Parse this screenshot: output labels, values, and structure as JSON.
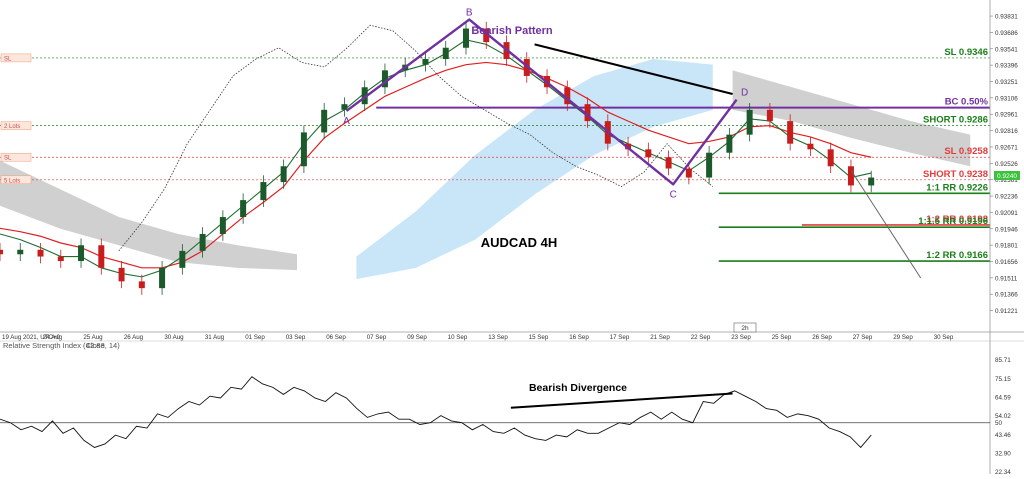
{
  "chart_data": [
    {
      "type": "line",
      "title": "AUDCAD 4H",
      "yaxis_ticks": [
        "0.93831",
        "0.93686",
        "0.93541",
        "0.93396",
        "0.93251",
        "0.93106",
        "0.92961",
        "0.92816",
        "0.92671",
        "0.92526",
        "0.92381",
        "0.92236",
        "0.92091",
        "0.91946",
        "0.91801",
        "0.91656",
        "0.91511",
        "0.91366",
        "0.91221"
      ],
      "xaxis_ticks": [
        "19 Aug 2021, UTC+0",
        "24 Aug",
        "25 Aug",
        "26 Aug",
        "30 Aug",
        "31 Aug",
        "01 Sep",
        "03 Sep",
        "06 Sep",
        "07 Sep",
        "09 Sep",
        "10 Sep",
        "13 Sep",
        "15 Sep",
        "16 Sep",
        "17 Sep",
        "21 Sep",
        "22 Sep",
        "23 Sep",
        "25 Sep",
        "26 Sep",
        "27 Sep",
        "29 Sep",
        "30 Sep"
      ],
      "timeframe_box": "2h",
      "price_box": "0.9240",
      "ylim": [
        0.9112,
        0.9392
      ],
      "pattern": {
        "name": "Bearish Pattern",
        "points": [
          {
            "label": "A",
            "x": 17.5,
            "y": 0.9299
          },
          {
            "label": "B",
            "x": 23.7,
            "y": 0.938
          },
          {
            "label": "C",
            "x": 34.0,
            "y": 0.9234
          },
          {
            "label": "D",
            "x": 37.2,
            "y": 0.9309
          }
        ]
      },
      "levels": [
        {
          "label": "SL 0.9346",
          "value": 0.9346,
          "color": "#1a7f1a",
          "style": "dotted",
          "x_from": 0
        },
        {
          "label": "BC 0.50%",
          "value": 0.9302,
          "color": "#7030a0",
          "style": "solid",
          "x_from": 19
        },
        {
          "label": "SHORT 0.9286",
          "value": 0.9286,
          "color": "#1a7f1a",
          "style": "dotted",
          "x_from": 0
        },
        {
          "label": "SL 0.9258",
          "value": 0.9258,
          "color": "#e23b3b",
          "style": "dotted",
          "x_from": 0
        },
        {
          "label": "SHORT 0.9238",
          "value": 0.9238,
          "color": "#e23b3b",
          "style": "dotted",
          "x_from": 0
        },
        {
          "label": "1:1 RR 0.9226",
          "value": 0.9226,
          "color": "#1a7f1a",
          "style": "solid",
          "x_from": 36.3
        },
        {
          "label": "1:2 RR 0.9198",
          "value": 0.9198,
          "color": "#e23b3b",
          "style": "solid",
          "x_from": 40.5
        },
        {
          "label": "1:1.5 RR 0.9196",
          "value": 0.9196,
          "color": "#1a7f1a",
          "style": "solid",
          "x_from": 36.3
        },
        {
          "label": "1:2 RR 0.9166",
          "value": 0.9166,
          "color": "#1a7f1a",
          "style": "solid",
          "x_from": 36.3
        }
      ],
      "order_tags": [
        "SL",
        "2 Lots",
        "SL",
        "5 Lots"
      ],
      "trendline": [
        {
          "x": 27.0,
          "y": 0.9358
        },
        {
          "x": 37.0,
          "y": 0.9314
        }
      ],
      "projection": [
        {
          "x": 43.0,
          "y": 0.9246
        },
        {
          "x": 46.5,
          "y": 0.9151
        }
      ],
      "candles_close": [
        0.9172,
        0.9176,
        0.917,
        0.9166,
        0.918,
        0.916,
        0.9148,
        0.9142,
        0.916,
        0.9175,
        0.919,
        0.9205,
        0.922,
        0.9236,
        0.925,
        0.928,
        0.93,
        0.9305,
        0.932,
        0.9335,
        0.934,
        0.9345,
        0.9355,
        0.9372,
        0.936,
        0.9345,
        0.933,
        0.932,
        0.9305,
        0.929,
        0.927,
        0.9265,
        0.9258,
        0.9248,
        0.924,
        0.9262,
        0.9278,
        0.93,
        0.929,
        0.927,
        0.9265,
        0.925,
        0.9233,
        0.924
      ],
      "tenkan": [
        0.919,
        0.9185,
        0.9178,
        0.917,
        0.917,
        0.916,
        0.9155,
        0.9152,
        0.9158,
        0.917,
        0.9185,
        0.92,
        0.9215,
        0.923,
        0.9245,
        0.927,
        0.929,
        0.93,
        0.9315,
        0.9328,
        0.9335,
        0.934,
        0.935,
        0.9362,
        0.9358,
        0.9348,
        0.9335,
        0.9322,
        0.9308,
        0.9294,
        0.9278,
        0.927,
        0.9262,
        0.9254,
        0.9246,
        0.9258,
        0.9272,
        0.9292,
        0.929,
        0.9276,
        0.9268,
        0.9255,
        0.924,
        0.9244
      ],
      "kijun": [
        0.9195,
        0.9192,
        0.9188,
        0.9182,
        0.9178,
        0.917,
        0.9165,
        0.916,
        0.916,
        0.9165,
        0.9175,
        0.919,
        0.9205,
        0.9218,
        0.9232,
        0.9255,
        0.9275,
        0.9288,
        0.93,
        0.9312,
        0.932,
        0.9328,
        0.9335,
        0.934,
        0.9342,
        0.934,
        0.9335,
        0.9328,
        0.932,
        0.931,
        0.9298,
        0.929,
        0.9282,
        0.9276,
        0.927,
        0.9272,
        0.9276,
        0.9285,
        0.9286,
        0.928,
        0.9276,
        0.927,
        0.9262,
        0.9258
      ],
      "chikou": [
        0.9175,
        0.92,
        0.923,
        0.927,
        0.93,
        0.933,
        0.9345,
        0.9355,
        0.9342,
        0.9338,
        0.9355,
        0.9375,
        0.937,
        0.9352,
        0.933,
        0.9312,
        0.93,
        0.9288,
        0.9278,
        0.9262,
        0.925,
        0.9242,
        0.9232,
        0.9245,
        0.927,
        0.9248,
        0.9232
      ],
      "cloud_grey": [
        {
          "x": 0,
          "top": 0.9255,
          "bottom": 0.9215
        },
        {
          "x": 3,
          "top": 0.923,
          "bottom": 0.9195
        },
        {
          "x": 6,
          "top": 0.9205,
          "bottom": 0.918
        },
        {
          "x": 9,
          "top": 0.919,
          "bottom": 0.9165
        },
        {
          "x": 12,
          "top": 0.918,
          "bottom": 0.916
        },
        {
          "x": 15,
          "top": 0.9172,
          "bottom": 0.9158
        },
        {
          "x": 37,
          "top": 0.9335,
          "bottom": 0.93
        },
        {
          "x": 40,
          "top": 0.932,
          "bottom": 0.929
        },
        {
          "x": 43,
          "top": 0.9305,
          "bottom": 0.9275
        },
        {
          "x": 46,
          "top": 0.929,
          "bottom": 0.9262
        },
        {
          "x": 49,
          "top": 0.9278,
          "bottom": 0.925
        }
      ],
      "cloud_blue": [
        {
          "x": 18,
          "top": 0.917,
          "bottom": 0.915
        },
        {
          "x": 21,
          "top": 0.921,
          "bottom": 0.916
        },
        {
          "x": 24,
          "top": 0.926,
          "bottom": 0.9185
        },
        {
          "x": 27,
          "top": 0.93,
          "bottom": 0.9225
        },
        {
          "x": 30,
          "top": 0.933,
          "bottom": 0.926
        },
        {
          "x": 33,
          "top": 0.9345,
          "bottom": 0.9285
        },
        {
          "x": 36,
          "top": 0.934,
          "bottom": 0.93
        }
      ]
    },
    {
      "type": "line",
      "title": "Relative Strength Index (Close, 14)",
      "current_value": "42.83",
      "ylim": [
        21.0,
        90.0
      ],
      "yaxis_ticks": [
        "85.71",
        "75.15",
        "64.59",
        "54.02",
        "50",
        "43.46",
        "32.90",
        "22.34"
      ],
      "reference_level": 50,
      "annotation": "Bearish Divergence",
      "divergence_line": [
        {
          "x": 25.8,
          "y": 58.5
        },
        {
          "x": 37.0,
          "y": 66.5
        }
      ],
      "series": [
        {
          "values": [
            52,
            50,
            46,
            48,
            45,
            51,
            44,
            47,
            40,
            36,
            38,
            43,
            41,
            48,
            47,
            55,
            53,
            58,
            62,
            60,
            65,
            64,
            70,
            69,
            76,
            72,
            70,
            66,
            70,
            68,
            64,
            62,
            67,
            64,
            58,
            53,
            55,
            56,
            52,
            52,
            49,
            50,
            54,
            51,
            50,
            46,
            49,
            45,
            44,
            47,
            43,
            41,
            40,
            43,
            42,
            46,
            44,
            44,
            47,
            50,
            49,
            53,
            56,
            52,
            56,
            52,
            50,
            62,
            61,
            66,
            68,
            65,
            62,
            58,
            57,
            53,
            55,
            54,
            52,
            47,
            45,
            42,
            36,
            43
          ]
        }
      ]
    }
  ]
}
